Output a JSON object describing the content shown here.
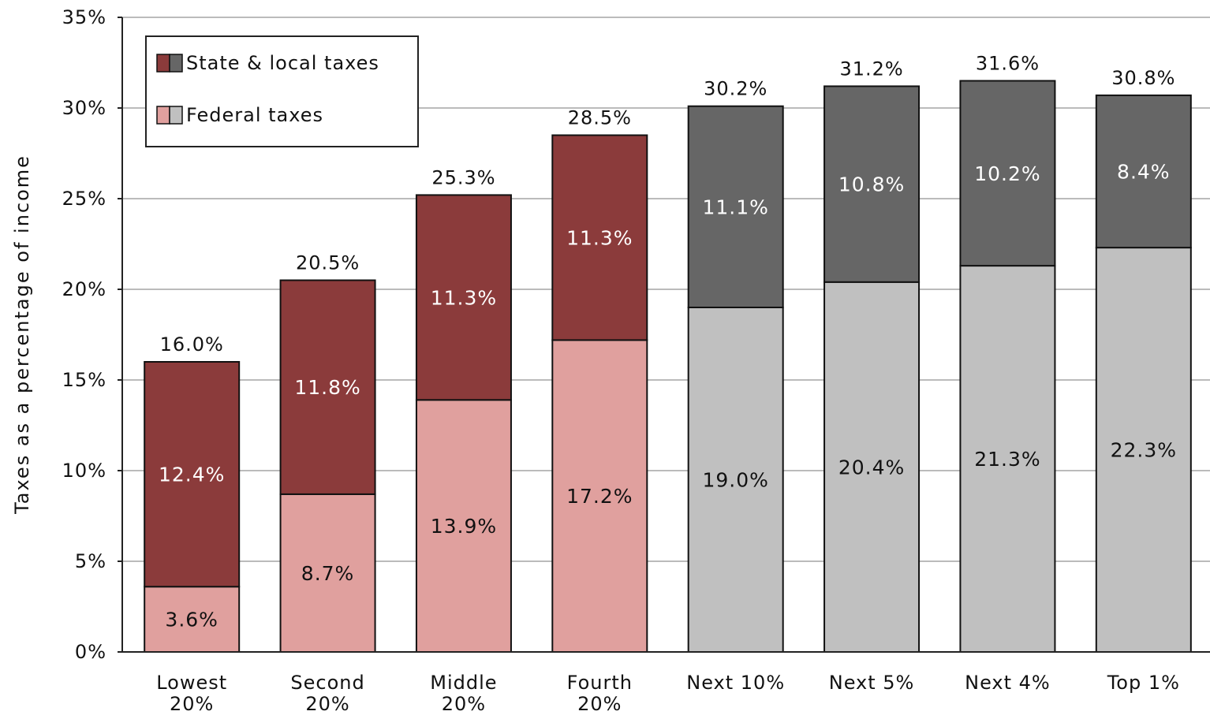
{
  "chart_data": {
    "type": "bar",
    "stacked": true,
    "ylabel": "Taxes as a percentage of income",
    "ylim": [
      0,
      35
    ],
    "yticks": [
      "0%",
      "5%",
      "10%",
      "15%",
      "20%",
      "25%",
      "30%",
      "35%"
    ],
    "ytick_values": [
      0,
      5,
      10,
      15,
      20,
      25,
      30,
      35
    ],
    "grid": true,
    "legend_position": "top-left",
    "categories": [
      [
        "Lowest",
        "20%"
      ],
      [
        "Second",
        "20%"
      ],
      [
        "Middle",
        "20%"
      ],
      [
        "Fourth",
        "20%"
      ],
      [
        "Next 10%"
      ],
      [
        "Next 5%"
      ],
      [
        "Next 4%"
      ],
      [
        "Top 1%"
      ]
    ],
    "series": [
      {
        "name": "Federal taxes",
        "values": [
          3.6,
          8.7,
          13.9,
          17.2,
          19.0,
          20.4,
          21.3,
          22.3
        ],
        "labels": [
          "3.6%",
          "8.7%",
          "13.9%",
          "17.2%",
          "19.0%",
          "20.4%",
          "21.3%",
          "22.3%"
        ]
      },
      {
        "name": "State & local taxes",
        "values": [
          12.4,
          11.8,
          11.3,
          11.3,
          11.1,
          10.8,
          10.2,
          8.4
        ],
        "labels": [
          "12.4%",
          "11.8%",
          "11.3%",
          "11.3%",
          "11.1%",
          "10.8%",
          "10.2%",
          "8.4%"
        ]
      }
    ],
    "totals": [
      16.0,
      20.5,
      25.3,
      28.5,
      30.2,
      31.2,
      31.6,
      30.8
    ],
    "total_labels": [
      "16.0%",
      "20.5%",
      "25.3%",
      "28.5%",
      "30.2%",
      "31.2%",
      "31.6%",
      "30.8%"
    ],
    "colors": {
      "federal_red": "#e0a09e",
      "state_red": "#8b3b3b",
      "federal_gray": "#c0c0c0",
      "state_gray": "#666666",
      "grid": "#bbbbbb"
    },
    "red_group_count": 4
  }
}
